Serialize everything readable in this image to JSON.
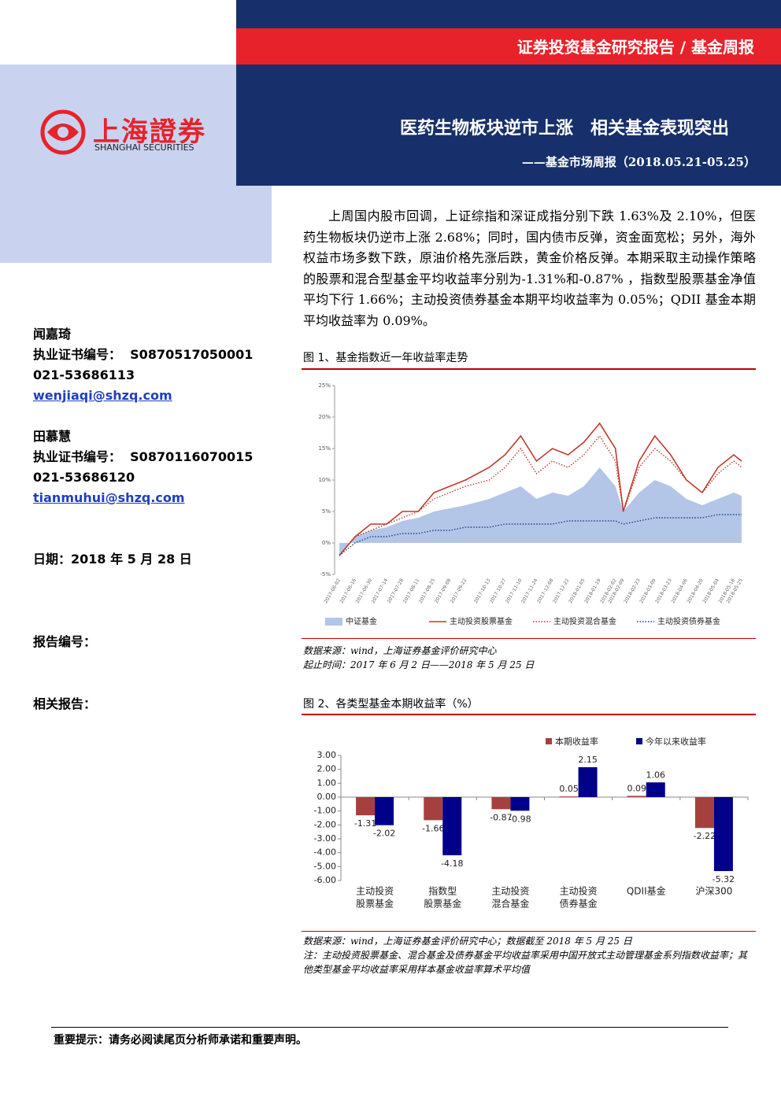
{
  "header": {
    "category": "证券投资基金研究报告 / 基金周报",
    "title": "医药生物板块逆市上涨　相关基金表现突出",
    "subtitle": "——基金市场周报（2018.05.21-05.25）"
  },
  "logo": {
    "name": "上海證券",
    "english": "SHANGHAI SECURITIES"
  },
  "sidebar": {
    "analysts": [
      {
        "name": "闻嘉琦",
        "cert_label": "执业证书编号：",
        "cert": "S0870517050001",
        "phone": "021-53686113",
        "email": "wenjiaqi@shzq.com"
      },
      {
        "name": "田慕慧",
        "cert_label": "执业证书编号：",
        "cert": "S0870116070015",
        "phone": "021-53686120",
        "email": "tianmuhui@shzq.com"
      }
    ],
    "date": "日期：2018 年 5 月 28 日",
    "report_no": "报告编号：",
    "related": "相关报告："
  },
  "summary": "上周国内股市回调，上证综指和深证成指分别下跌 1.63%及 2.10%，但医药生物板块仍逆市上涨 2.68%；同时，国内债市反弹，资金面宽松；另外，海外权益市场多数下跌，原油价格先涨后跌，黄金价格反弹。本期采取主动操作策略的股票和混合型基金平均收益率分别为-1.31%和-0.87% ，指数型股票基金净值平均下行 1.66%；主动投资债券基金本期平均收益率为 0.05%；QDII 基金本期平均收益率为 0.09%。",
  "figure_notes": [
    [
      "数据来源：wind，上海证券基金评价研究中心",
      "起止时间：2017 年 6 月 2 日——2018 年 5 月 25 日"
    ],
    [
      "数据来源：wind，上海证券基金评价研究中心；数据截至 2018 年 5 月 25 日",
      "注：主动投资股票基金、混合基金及债券基金平均收益率采用中国开放式主动管理基金系列指数收益率；其他类型基金平均收益率采用样本基金收益率算术平均值"
    ]
  ],
  "footer": "重要提示：请务必阅读尾页分析师承诺和重要声明。",
  "chart_data": [
    {
      "type": "line",
      "title": "图 1、基金指数近一年收益率走势",
      "x": [
        "2017-06-02",
        "2017-06-16",
        "2017-06-30",
        "2017-07-14",
        "2017-07-28",
        "2017-08-11",
        "2017-08-25",
        "2017-09-08",
        "2017-09-22",
        "2017-10-13",
        "2017-10-27",
        "2017-11-10",
        "2017-11-24",
        "2017-12-08",
        "2017-12-22",
        "2018-01-05",
        "2018-01-19",
        "2018-02-02",
        "2018-02-09",
        "2018-02-23",
        "2018-03-09",
        "2018-03-23",
        "2018-04-06",
        "2018-04-20",
        "2018-05-04",
        "2018-05-18",
        "2018-05-25"
      ],
      "series": [
        {
          "name": "中证基金",
          "style": "area",
          "color": "#b4c6e7",
          "values": [
            -2,
            1,
            2,
            2.5,
            3.5,
            4,
            5,
            5.5,
            6,
            7,
            8,
            9,
            7,
            8,
            7.5,
            9,
            12,
            9,
            5,
            8,
            10,
            9,
            7,
            6,
            7,
            8,
            7.5
          ]
        },
        {
          "name": "主动投资股票基金",
          "style": "solid",
          "color": "#c0392b",
          "values": [
            -2,
            1,
            3,
            3,
            5,
            5,
            8,
            9,
            10,
            12,
            14,
            17,
            13,
            15,
            14,
            16,
            19,
            15,
            5,
            13,
            17,
            14,
            10,
            8,
            12,
            14,
            13
          ]
        },
        {
          "name": "主动投资混合基金",
          "style": "dotted",
          "color": "#c0392b",
          "values": [
            -2,
            1,
            2,
            3,
            4,
            5,
            7,
            8,
            9,
            10,
            12,
            15,
            11,
            13,
            12,
            14,
            17,
            13,
            5,
            12,
            15,
            13,
            10,
            8,
            11,
            13,
            12
          ]
        },
        {
          "name": "主动投资债券基金",
          "style": "dotted",
          "color": "#1f3f8f",
          "values": [
            -2,
            0,
            1,
            1,
            1.5,
            1.5,
            2,
            2,
            2.5,
            2.5,
            3,
            3,
            3,
            3,
            3.5,
            3.5,
            3.5,
            3.5,
            3,
            3.5,
            4,
            4,
            4,
            4,
            4.5,
            4.5,
            4.5
          ]
        }
      ],
      "ylim": [
        -5,
        25
      ],
      "yticks": [
        {
          "value": -5,
          "label": "-5%"
        },
        {
          "value": 0,
          "label": "0%"
        },
        {
          "value": 5,
          "label": "5%"
        },
        {
          "value": 10,
          "label": "10%"
        },
        {
          "value": 15,
          "label": "15%"
        },
        {
          "value": 20,
          "label": "20%"
        },
        {
          "value": 25,
          "label": "25%"
        }
      ],
      "legend": "bottom"
    },
    {
      "type": "bar",
      "title": "图 2、各类型基金本期收益率（%）",
      "categories": [
        [
          "主动投资",
          "股票基金"
        ],
        [
          "指数型",
          "股票基金"
        ],
        [
          "主动投资",
          "混合基金"
        ],
        [
          "主动投资",
          "债券基金"
        ],
        [
          "QDII基金"
        ],
        [
          "沪深300"
        ]
      ],
      "series": [
        {
          "name": "本期收益率",
          "color": "#a5403e",
          "values": [
            -1.31,
            -1.66,
            -0.87,
            0.05,
            0.09,
            -2.22
          ]
        },
        {
          "name": "今年以来收益率",
          "color": "#00008b",
          "values": [
            -2.02,
            -4.18,
            -0.98,
            2.15,
            1.06,
            -5.32
          ]
        }
      ],
      "ylim": [
        -6,
        3
      ],
      "yticks": [
        {
          "value": 3,
          "label": "3.00"
        },
        {
          "value": 2,
          "label": "2.00"
        },
        {
          "value": 1,
          "label": "1.00"
        },
        {
          "value": 0,
          "label": "0.00"
        },
        {
          "value": -1,
          "label": "-1.00"
        },
        {
          "value": -2,
          "label": "-2.00"
        },
        {
          "value": -3,
          "label": "-3.00"
        },
        {
          "value": -4,
          "label": "-4.00"
        },
        {
          "value": -5,
          "label": "-5.00"
        },
        {
          "value": -6,
          "label": "-6.00"
        }
      ],
      "legend": "top-right"
    }
  ]
}
